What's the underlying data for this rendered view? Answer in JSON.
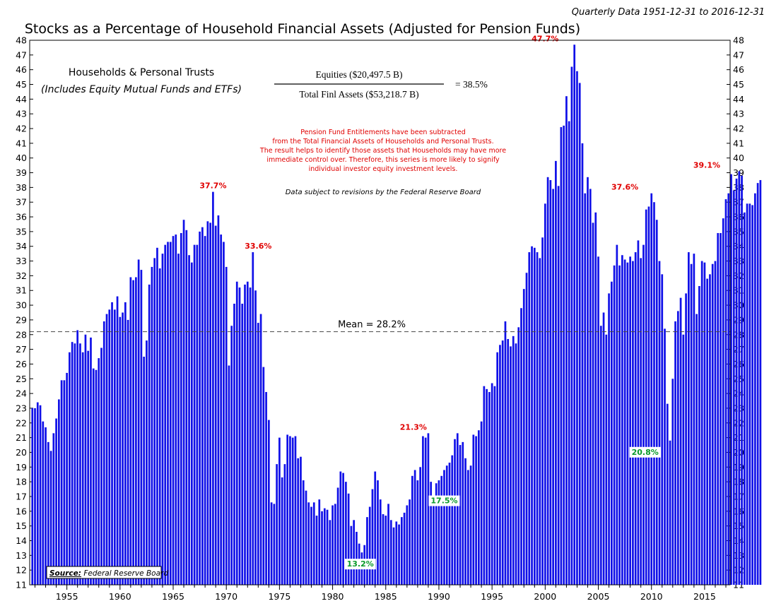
{
  "chart_data": {
    "type": "bar",
    "title": "Stocks as a Percentage of Household Financial Assets (Adjusted for Pension Funds)",
    "subtitle": "Quarterly Data 1951-12-31 to 2016-12-31",
    "series_label_line1": "Households & Personal Trusts",
    "series_label_line2": "(Includes Equity Mutual Funds and ETFs)",
    "formula": {
      "numerator": "Equities ($20,497.5 B)",
      "denominator": "Total Finl Assets ($53,218.7 B)",
      "result": "= 38.5%"
    },
    "note_lines": [
      "Pension Fund Entitlements have been subtracted",
      "from the Total Financial Assets of Households and Personal Trusts.",
      "The result helps to identify those assets that Households may have more",
      "immediate control over. Therefore, this series is more likely to signify",
      "individual investor equity investment levels."
    ],
    "revision_note": "Data subject to revisions by the Federal Reserve Board",
    "source_prefix": "Source:",
    "source_text": " Federal Reserve Board",
    "mean": 28.2,
    "mean_label": "Mean = 28.2%",
    "ylim": [
      11,
      48
    ],
    "yticks": [
      11,
      12,
      13,
      14,
      15,
      16,
      17,
      18,
      19,
      20,
      21,
      22,
      23,
      24,
      25,
      26,
      27,
      28,
      29,
      30,
      31,
      32,
      33,
      34,
      35,
      36,
      37,
      38,
      39,
      40,
      41,
      42,
      43,
      44,
      45,
      46,
      47,
      48
    ],
    "xlim": [
      1951.5,
      2017.4
    ],
    "xticks": [
      1955,
      1960,
      1965,
      1970,
      1975,
      1980,
      1985,
      1990,
      1995,
      2000,
      2005,
      2010,
      2015
    ],
    "bar_color": "#1010e8",
    "start_year": 1951.75,
    "annotations": [
      {
        "text": "47.7%",
        "x": 2000,
        "y": 47.7,
        "kind": "peak"
      },
      {
        "text": "37.7%",
        "x": 1968.75,
        "y": 37.7,
        "kind": "peak"
      },
      {
        "text": "33.6%",
        "x": 1973,
        "y": 33.6,
        "kind": "peak"
      },
      {
        "text": "37.6%",
        "x": 2007.5,
        "y": 37.6,
        "kind": "peak"
      },
      {
        "text": "39.1%",
        "x": 2015.2,
        "y": 39.1,
        "kind": "peak"
      },
      {
        "text": "21.3%",
        "x": 1987.6,
        "y": 21.3,
        "kind": "peak"
      },
      {
        "text": "13.2%",
        "x": 1982.6,
        "y": 13.2,
        "kind": "trough"
      },
      {
        "text": "17.5%",
        "x": 1990.5,
        "y": 17.5,
        "kind": "trough"
      },
      {
        "text": "20.8%",
        "x": 2009.4,
        "y": 20.8,
        "kind": "trough"
      }
    ],
    "values": [
      23.0,
      23.0,
      23.4,
      23.2,
      22.1,
      21.7,
      20.7,
      20.1,
      21.3,
      22.3,
      23.6,
      24.9,
      24.9,
      25.4,
      26.8,
      27.5,
      27.4,
      28.3,
      27.4,
      26.8,
      28.0,
      26.9,
      27.8,
      25.7,
      25.6,
      26.4,
      27.1,
      28.9,
      29.4,
      29.7,
      30.2,
      29.7,
      30.6,
      29.2,
      29.5,
      30.2,
      29.0,
      31.9,
      31.7,
      31.9,
      33.1,
      32.4,
      26.5,
      27.6,
      31.4,
      32.6,
      33.2,
      33.9,
      32.5,
      33.5,
      34.1,
      34.3,
      34.3,
      34.7,
      34.8,
      33.5,
      34.9,
      35.8,
      35.1,
      33.4,
      32.9,
      34.1,
      34.1,
      35.0,
      35.3,
      34.7,
      35.7,
      35.6,
      37.7,
      35.4,
      36.1,
      34.8,
      34.3,
      32.6,
      25.9,
      28.6,
      30.1,
      31.6,
      31.2,
      30.1,
      31.4,
      31.6,
      31.2,
      33.6,
      31.0,
      28.8,
      29.4,
      25.8,
      24.1,
      22.2,
      16.6,
      16.5,
      19.2,
      21.0,
      18.3,
      19.2,
      21.2,
      21.1,
      21.0,
      21.1,
      19.6,
      19.7,
      18.1,
      17.4,
      16.6,
      16.3,
      16.6,
      15.7,
      16.8,
      16.0,
      16.2,
      16.1,
      15.4,
      16.4,
      16.5,
      17.6,
      18.7,
      18.6,
      18.0,
      17.2,
      15.0,
      15.4,
      14.6,
      13.8,
      13.2,
      13.7,
      15.6,
      16.3,
      17.5,
      18.7,
      18.1,
      16.8,
      15.8,
      15.7,
      16.5,
      15.4,
      14.9,
      15.3,
      15.1,
      15.6,
      15.9,
      16.4,
      16.8,
      18.4,
      18.8,
      18.1,
      19.0,
      21.1,
      21.0,
      21.3,
      18.0,
      16.7,
      17.9,
      18.1,
      18.4,
      18.8,
      19.1,
      19.3,
      19.8,
      20.9,
      21.3,
      20.5,
      20.7,
      19.6,
      18.8,
      19.1,
      21.2,
      21.1,
      21.5,
      22.1,
      24.5,
      24.3,
      24.1,
      24.7,
      24.5,
      26.8,
      27.3,
      27.6,
      28.9,
      27.7,
      27.2,
      27.9,
      27.4,
      28.5,
      29.8,
      31.1,
      32.2,
      33.6,
      34.0,
      33.9,
      33.6,
      33.2,
      34.6,
      36.9,
      38.7,
      38.5,
      37.9,
      39.8,
      38.1,
      42.1,
      42.2,
      44.2,
      42.5,
      46.2,
      47.7,
      45.9,
      45.1,
      41.0,
      37.6,
      38.7,
      37.9,
      35.6,
      36.3,
      33.3,
      28.6,
      29.5,
      28.0,
      30.8,
      31.6,
      32.7,
      34.1,
      32.7,
      33.4,
      33.1,
      32.9,
      33.3,
      33.0,
      33.6,
      34.4,
      33.2,
      34.1,
      36.5,
      36.7,
      37.6,
      37.0,
      35.8,
      33.0,
      32.1,
      28.4,
      23.3,
      20.8,
      25.0,
      28.9,
      29.6,
      30.5,
      28.0,
      30.8,
      33.6,
      32.8,
      33.5,
      29.4,
      31.3,
      33.0,
      32.9,
      31.8,
      32.1,
      32.8,
      33.0,
      34.9,
      34.9,
      35.9,
      37.2,
      37.6,
      38.9,
      37.8,
      38.6,
      39.1,
      38.8,
      36.3,
      36.9,
      36.9,
      36.8,
      37.6,
      38.3,
      38.5
    ]
  }
}
